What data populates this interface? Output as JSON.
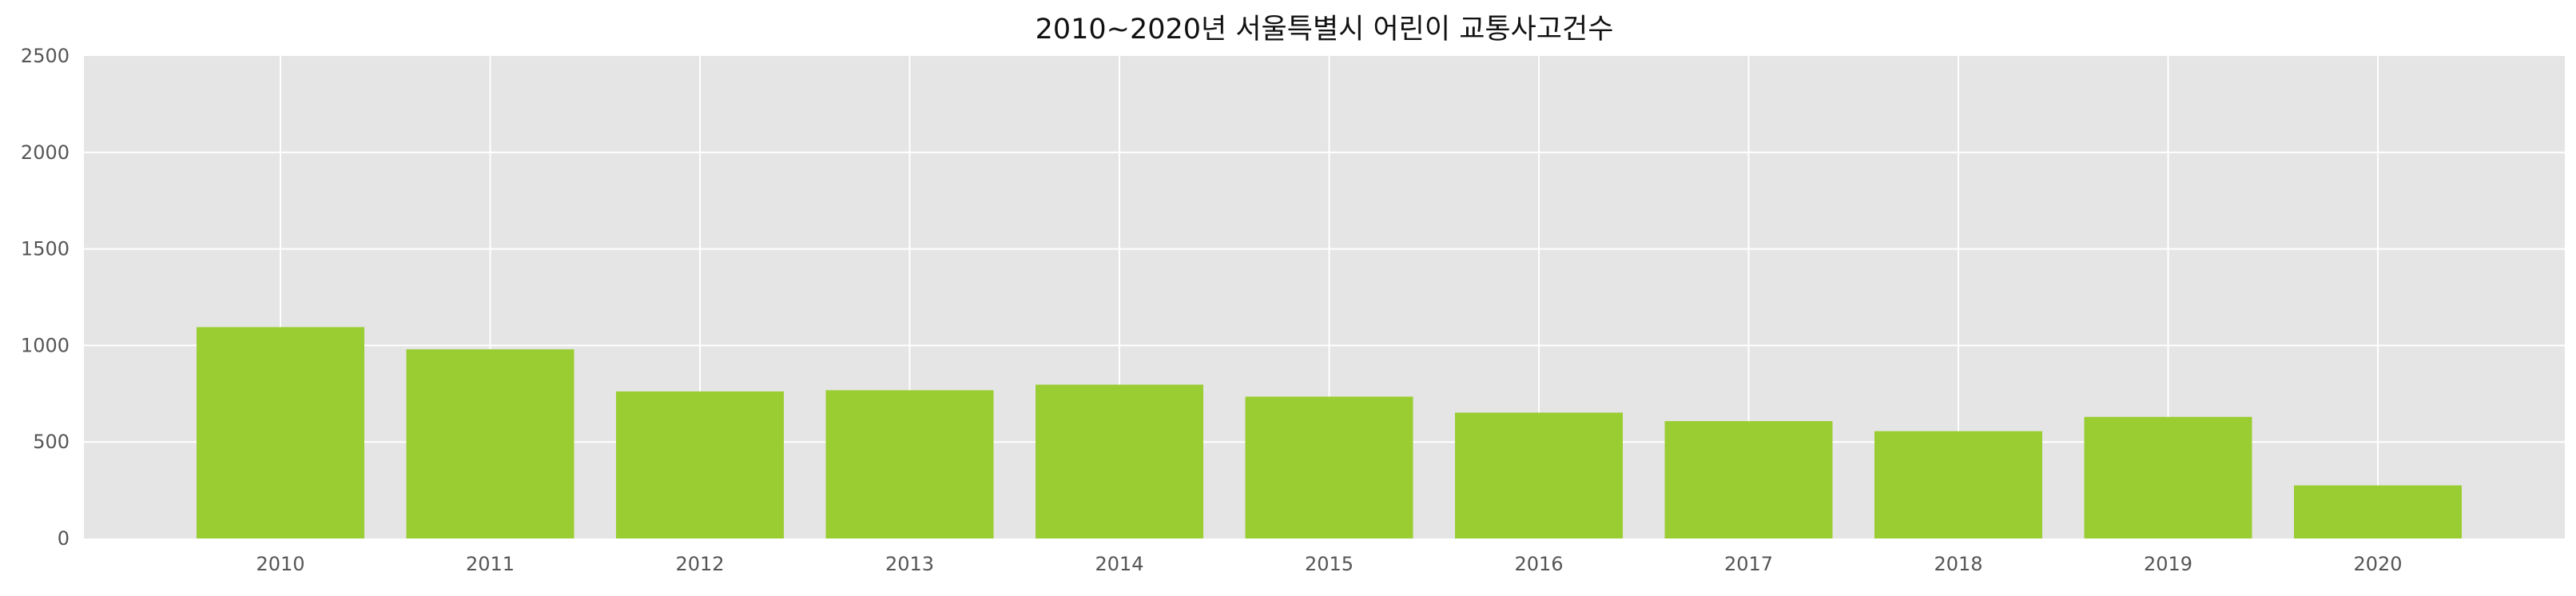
{
  "chart_data": {
    "type": "bar",
    "title": "2010~2020년 서울특별시 어린이 교통사고건수",
    "xlabel": "",
    "ylabel": "",
    "categories": [
      "2010",
      "2011",
      "2012",
      "2013",
      "2014",
      "2015",
      "2016",
      "2017",
      "2018",
      "2019",
      "2020"
    ],
    "values": [
      1095,
      980,
      762,
      768,
      797,
      735,
      652,
      608,
      556,
      630,
      275
    ],
    "ylim": [
      0,
      2500
    ],
    "yticks": [
      "0",
      "500",
      "1000",
      "1500",
      "2000",
      "2500"
    ],
    "grid": true,
    "bar_color": "#9acd32",
    "background_color": "#e5e5e5",
    "grid_color": "#ffffff"
  }
}
